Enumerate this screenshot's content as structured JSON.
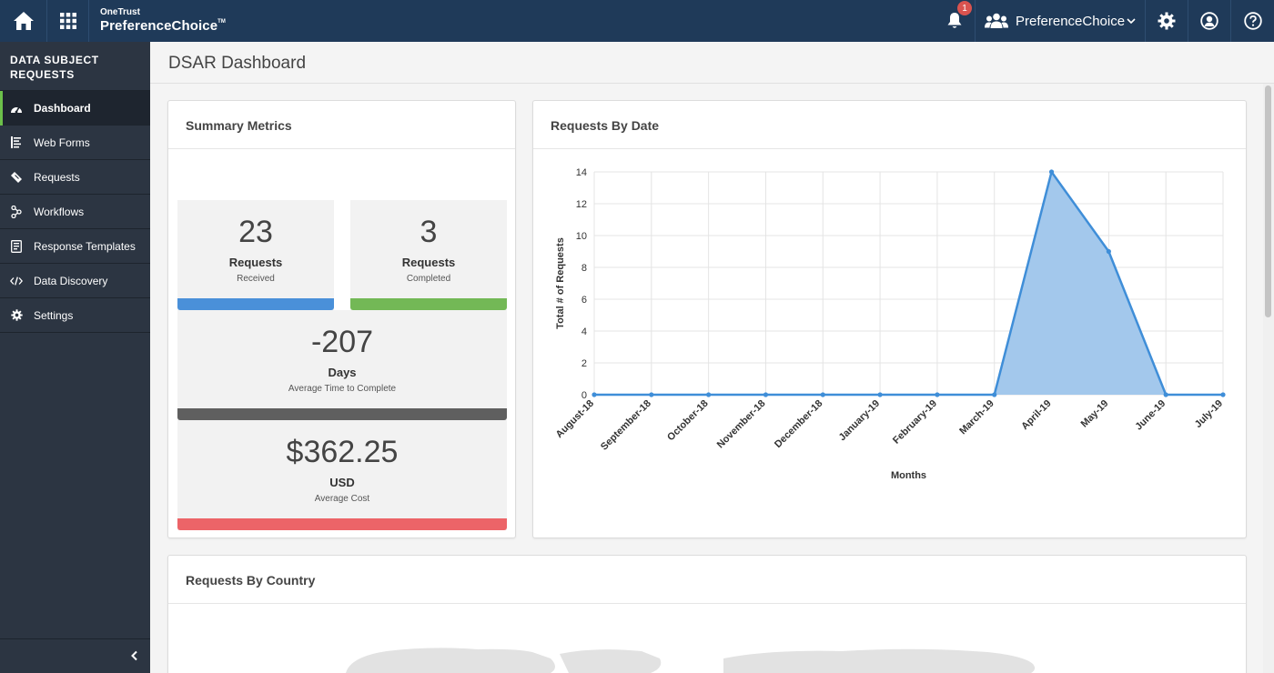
{
  "topbar": {
    "brand_top": "OneTrust",
    "brand_name": "PreferenceChoice",
    "brand_tm": "TM",
    "notification_count": "1",
    "org_name": "PreferenceChoice",
    "icons": [
      "home-icon",
      "apps-grid-icon",
      "bell-icon",
      "users-icon",
      "chevron-down-icon",
      "gear-icon",
      "user-circle-icon",
      "help-icon"
    ]
  },
  "sidebar": {
    "title": "DATA SUBJECT REQUESTS",
    "items": [
      {
        "label": "Dashboard",
        "icon": "dashboard-icon",
        "active": true
      },
      {
        "label": "Web Forms",
        "icon": "web-forms-icon",
        "active": false
      },
      {
        "label": "Requests",
        "icon": "ticket-icon",
        "active": false
      },
      {
        "label": "Workflows",
        "icon": "workflow-icon",
        "active": false
      },
      {
        "label": "Response Templates",
        "icon": "template-icon",
        "active": false
      },
      {
        "label": "Data Discovery",
        "icon": "code-icon",
        "active": false
      },
      {
        "label": "Settings",
        "icon": "gear-icon",
        "active": false
      }
    ]
  },
  "page": {
    "title": "DSAR Dashboard"
  },
  "summary": {
    "title": "Summary Metrics",
    "received": {
      "value": "23",
      "label": "Requests",
      "sub": "Received",
      "color": "#4a90d9"
    },
    "completed": {
      "value": "3",
      "label": "Requests",
      "sub": "Completed",
      "color": "#73b856"
    },
    "days": {
      "value": "-207",
      "label": "Days",
      "sub": "Average Time to Complete",
      "color": "#5f5f5f"
    },
    "cost": {
      "value": "$362.25",
      "label": "USD",
      "sub": "Average Cost",
      "color": "#ec6468"
    }
  },
  "requests_by_date": {
    "title": "Requests By Date"
  },
  "requests_by_country": {
    "title": "Requests By Country"
  },
  "chart_data": {
    "type": "area",
    "x": [
      "August-18",
      "September-18",
      "October-18",
      "November-18",
      "December-18",
      "January-19",
      "February-19",
      "March-19",
      "April-19",
      "May-19",
      "June-19",
      "July-19"
    ],
    "series": [
      {
        "values": [
          0,
          0,
          0,
          0,
          0,
          0,
          0,
          0,
          14,
          9,
          0,
          0
        ]
      }
    ],
    "xlabel": "Months",
    "ylabel": "Total # of Requests",
    "ylim": [
      0,
      14
    ],
    "yticks": [
      0,
      2,
      4,
      6,
      8,
      10,
      12,
      14
    ],
    "grid": true,
    "line_color": "#3f8ed8",
    "fill_color": "#a3c8ec"
  }
}
